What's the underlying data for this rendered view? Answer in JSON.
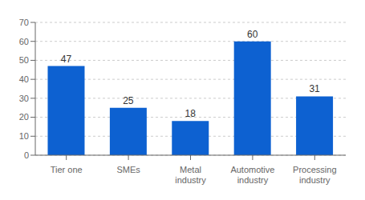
{
  "chart_data": {
    "type": "bar",
    "categories": [
      "Tier one",
      "SMEs",
      "Metal\nindustry",
      "Automotive\nindustry",
      "Processing\nindustry"
    ],
    "values": [
      47,
      25,
      18,
      60,
      31
    ],
    "color": "#0d61d1",
    "ylim": [
      0,
      70
    ],
    "yticks": [
      0,
      10,
      20,
      30,
      40,
      50,
      60,
      70
    ],
    "grid": true,
    "data_labels": true
  }
}
